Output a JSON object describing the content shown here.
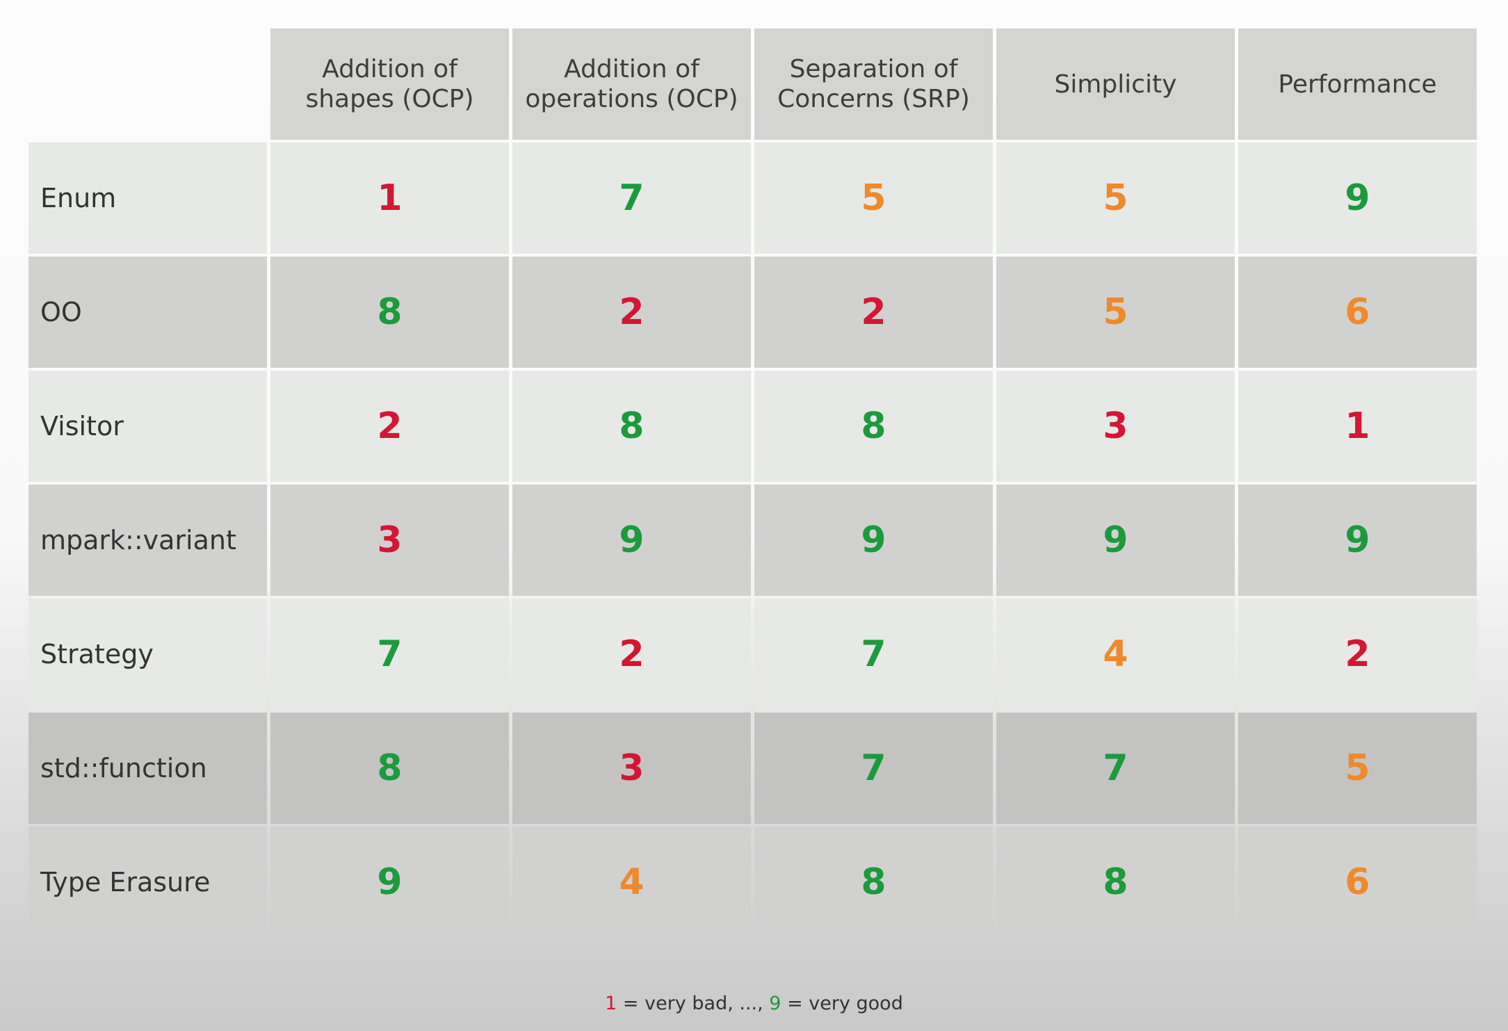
{
  "colors": {
    "bad": "#d31634",
    "medium": "#ee8a2b",
    "good": "#1c9a3c"
  },
  "headers": [
    "Addition of\nshapes (OCP)",
    "Addition of\noperations (OCP)",
    "Separation of\nConcerns (SRP)",
    "Simplicity",
    "Performance"
  ],
  "rows": [
    {
      "label": "Enum",
      "scores": [
        {
          "value": "1",
          "rating": "bad"
        },
        {
          "value": "7",
          "rating": "good"
        },
        {
          "value": "5",
          "rating": "medium"
        },
        {
          "value": "5",
          "rating": "medium"
        },
        {
          "value": "9",
          "rating": "good"
        }
      ]
    },
    {
      "label": "OO",
      "scores": [
        {
          "value": "8",
          "rating": "good"
        },
        {
          "value": "2",
          "rating": "bad"
        },
        {
          "value": "2",
          "rating": "bad"
        },
        {
          "value": "5",
          "rating": "medium"
        },
        {
          "value": "6",
          "rating": "medium"
        }
      ]
    },
    {
      "label": "Visitor",
      "scores": [
        {
          "value": "2",
          "rating": "bad"
        },
        {
          "value": "8",
          "rating": "good"
        },
        {
          "value": "8",
          "rating": "good"
        },
        {
          "value": "3",
          "rating": "bad"
        },
        {
          "value": "1",
          "rating": "bad"
        }
      ]
    },
    {
      "label": "mpark::variant",
      "scores": [
        {
          "value": "3",
          "rating": "bad"
        },
        {
          "value": "9",
          "rating": "good"
        },
        {
          "value": "9",
          "rating": "good"
        },
        {
          "value": "9",
          "rating": "good"
        },
        {
          "value": "9",
          "rating": "good"
        }
      ]
    },
    {
      "label": "Strategy",
      "scores": [
        {
          "value": "7",
          "rating": "good"
        },
        {
          "value": "2",
          "rating": "bad"
        },
        {
          "value": "7",
          "rating": "good"
        },
        {
          "value": "4",
          "rating": "medium"
        },
        {
          "value": "2",
          "rating": "bad"
        }
      ]
    },
    {
      "label": "std::function",
      "scores": [
        {
          "value": "8",
          "rating": "good"
        },
        {
          "value": "3",
          "rating": "bad"
        },
        {
          "value": "7",
          "rating": "good"
        },
        {
          "value": "7",
          "rating": "good"
        },
        {
          "value": "5",
          "rating": "medium"
        }
      ]
    },
    {
      "label": "Type Erasure",
      "scores": [
        {
          "value": "9",
          "rating": "good"
        },
        {
          "value": "4",
          "rating": "medium"
        },
        {
          "value": "8",
          "rating": "good"
        },
        {
          "value": "8",
          "rating": "good"
        },
        {
          "value": "6",
          "rating": "medium"
        }
      ]
    }
  ],
  "legend": {
    "low_value": "1",
    "low_text": " = very bad, ..., ",
    "high_value": "9",
    "high_text": " = very good"
  }
}
